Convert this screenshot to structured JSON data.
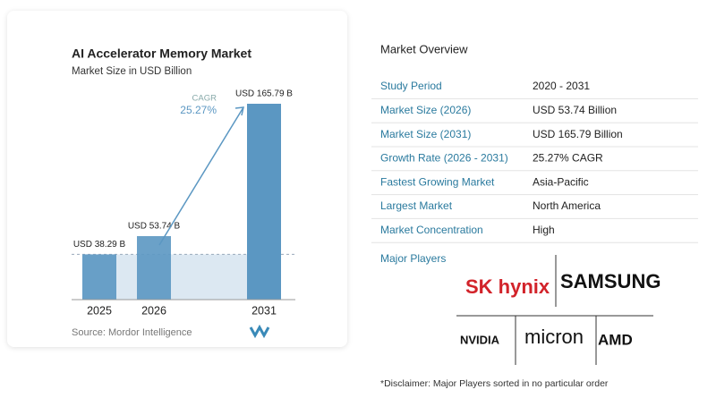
{
  "chart_data": {
    "type": "bar",
    "title": "AI Accelerator Memory Market",
    "subtitle": "Market Size in USD Billion",
    "categories": [
      "2025",
      "2026",
      "2031"
    ],
    "values": [
      38.29,
      53.74,
      165.79
    ],
    "value_labels": [
      "USD 38.29 B",
      "USD 53.74 B",
      "USD 165.79 B"
    ],
    "color": "#5b97c2",
    "annotation": {
      "label": "CAGR",
      "value": "25.27%"
    },
    "source": "Source: Mordor Intelligence"
  },
  "overview": {
    "title": "Market Overview",
    "rows": [
      [
        "Study Period",
        "2020 - 2031"
      ],
      [
        "Market Size (2026)",
        "USD 53.74 Billion"
      ],
      [
        "Market Size (2031)",
        "USD 165.79 Billion"
      ],
      [
        "Growth Rate (2026 - 2031)",
        "25.27% CAGR"
      ],
      [
        "Fastest Growing Market",
        "Asia-Pacific"
      ],
      [
        "Largest Market",
        "North America"
      ],
      [
        "Market Concentration",
        "High"
      ]
    ],
    "players_title": "Major Players",
    "players": [
      "SK hynix",
      "SAMSUNG",
      "NVIDIA",
      "micron",
      "AMD"
    ],
    "disclaimer": "*Disclaimer: Major Players sorted in no particular order"
  }
}
